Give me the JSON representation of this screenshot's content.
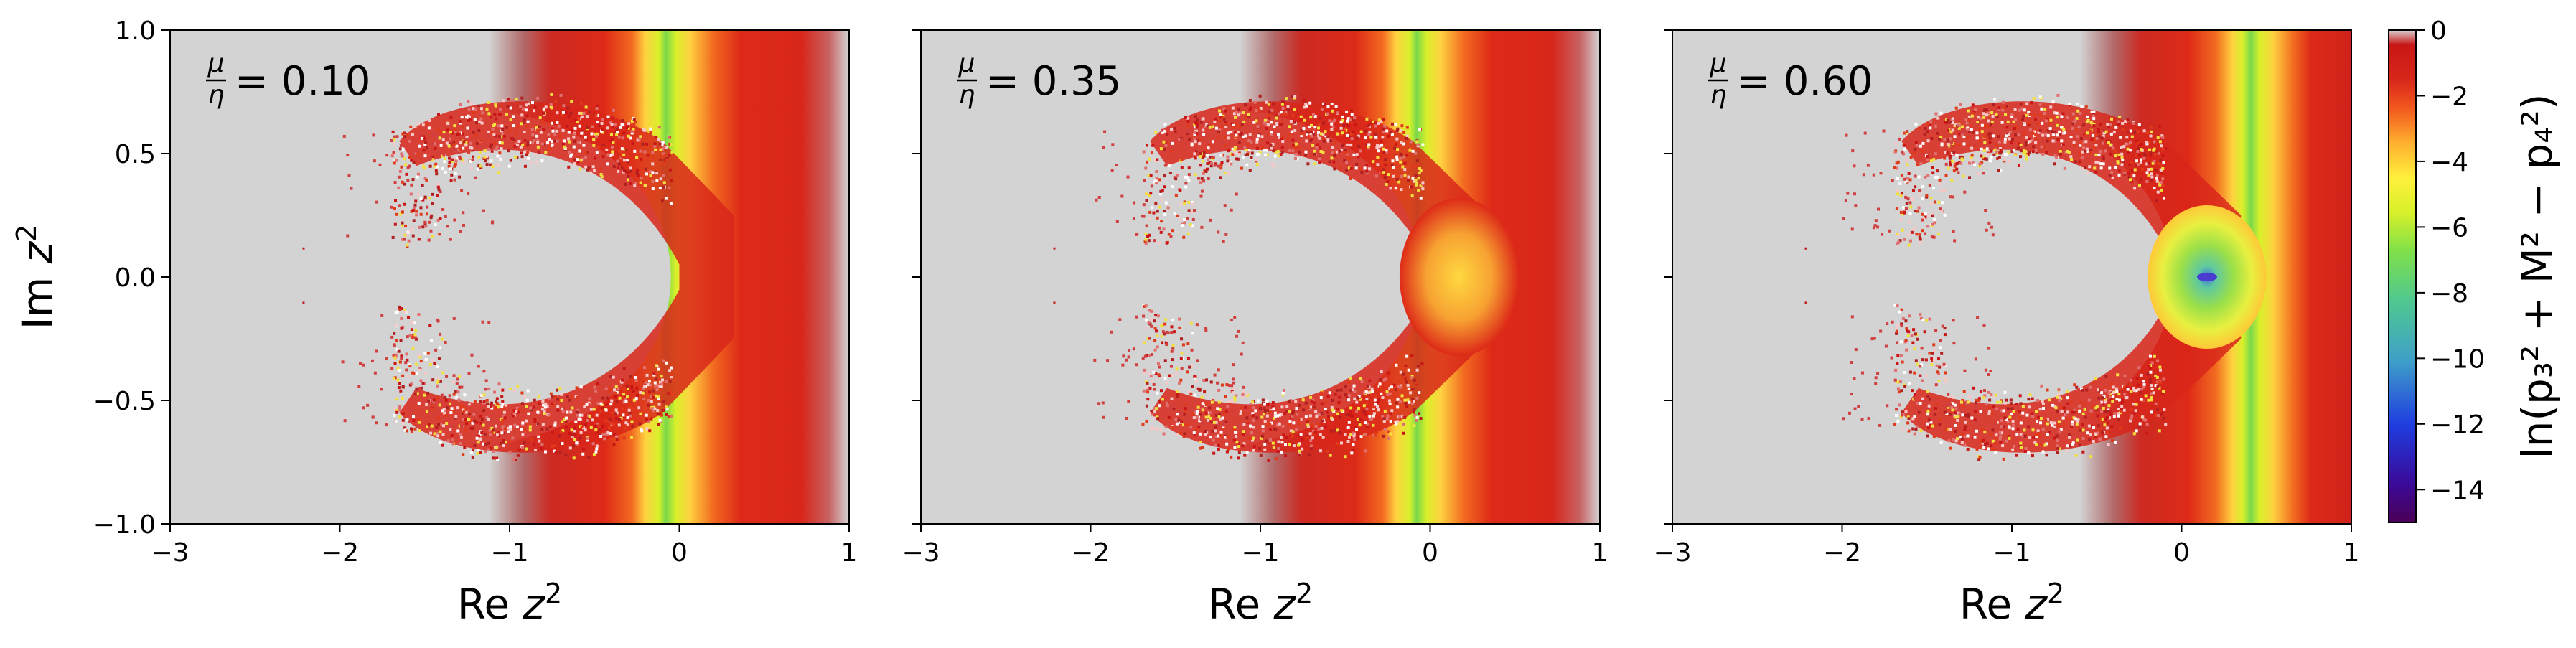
{
  "chart_data": {
    "type": "heatmap",
    "panels": [
      {
        "annotation": {
          "frac_num": "μ",
          "frac_den": "η",
          "eq": "= 0.10"
        },
        "mu_over_eta": 0.1,
        "region": {
          "inner_x": 0.0,
          "outer_x": 0.32
        },
        "minimum": null
      },
      {
        "annotation": {
          "frac_num": "μ",
          "frac_den": "η",
          "eq": "= 0.35"
        },
        "mu_over_eta": 0.35,
        "region": {
          "inner_x": 0.0,
          "outer_x": 0.35
        },
        "minimum": null
      },
      {
        "annotation": {
          "frac_num": "μ",
          "frac_den": "η",
          "eq": "= 0.60"
        },
        "mu_over_eta": 0.6,
        "region": {
          "inner_x": -0.05,
          "outer_x": 0.35
        },
        "minimum": {
          "x": 0.15,
          "y": 0.0,
          "value": -14
        }
      }
    ],
    "xlim": [
      -3,
      1
    ],
    "ylim": [
      -1,
      1
    ],
    "xticks": [
      "−3",
      "−2",
      "−1",
      "0",
      "1"
    ],
    "xtick_values": [
      -3,
      -2,
      -1,
      0,
      1
    ],
    "yticks": [
      "−1.0",
      "−0.5",
      "0.0",
      "0.5",
      "1.0"
    ],
    "ytick_values": [
      -1.0,
      -0.5,
      0.0,
      0.5,
      1.0
    ],
    "xlabel": {
      "pre": "Re ",
      "var": "z",
      "sup": "2"
    },
    "ylabel": {
      "pre": "Im ",
      "var": "z",
      "sup": "2"
    },
    "colorbar": {
      "ticks": [
        "0",
        "−2",
        "−4",
        "−6",
        "−8",
        "−10",
        "−12",
        "−14"
      ],
      "tick_values": [
        0,
        -2,
        -4,
        -6,
        -8,
        -10,
        -12,
        -14
      ],
      "range": [
        -15,
        0
      ],
      "label": "ln(p₃² + M² − p₄²)",
      "colors": [
        "#4b0055",
        "#3a0a9a",
        "#1f3ee0",
        "#3fa0c8",
        "#4fc890",
        "#7fe04a",
        "#d8f02a",
        "#fff03c",
        "#ffb030",
        "#f25a1e",
        "#d8261a",
        "#c81616",
        "#d8cfcf"
      ]
    },
    "grid": false,
    "background_color": "#d3d3d3"
  }
}
